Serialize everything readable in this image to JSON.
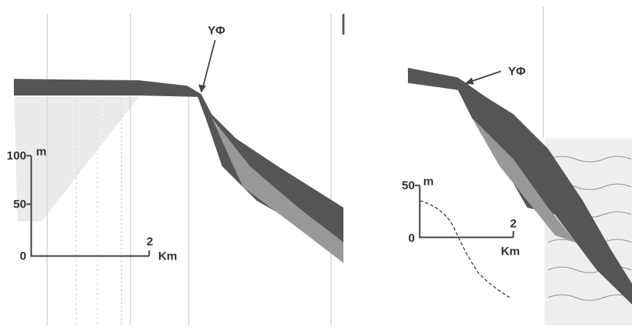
{
  "panels": [
    {
      "annotation": "YΦ",
      "scale": {
        "y_labels": [
          "100",
          "50",
          "0"
        ],
        "y_unit": "m",
        "x_label": "2",
        "x_unit": "Km"
      }
    },
    {
      "annotation": "YΦ",
      "scale": {
        "y_labels": [
          "50",
          "0"
        ],
        "y_unit": "m",
        "x_label": "2",
        "x_unit": "Km"
      }
    }
  ]
}
